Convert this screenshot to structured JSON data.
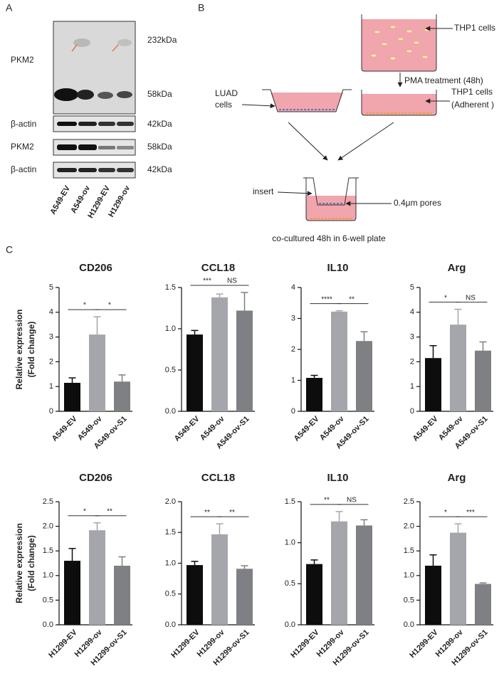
{
  "panels": {
    "A": {
      "label": "A",
      "blots": [
        {
          "protein": "PKM2",
          "markers": [
            "232kDa",
            "58kDa"
          ]
        },
        {
          "protein": "β-actin",
          "markers": [
            "42kDa"
          ]
        },
        {
          "protein": "PKM2",
          "markers": [
            "58kDa"
          ]
        },
        {
          "protein": "β-actin",
          "markers": [
            "42kDa"
          ]
        }
      ],
      "lanes": [
        "A549-EV",
        "A549-ov",
        "H1299-EV",
        "H1299-ov"
      ]
    },
    "B": {
      "label": "B",
      "thp1": "THP1 cells",
      "pma": "PMA treatment (48h)",
      "luad": [
        "LUAD",
        "cells"
      ],
      "adherent": [
        "THP1 cells",
        "(Adherent )"
      ],
      "insert": "insert",
      "pores": "0.4μm pores",
      "caption": "co-cultured 48h in 6-well plate"
    },
    "C": {
      "label": "C"
    }
  },
  "chart_data": [
    {
      "type": "bar",
      "title": "CD206",
      "ylabel": [
        "Relative expression",
        "(Fold change)"
      ],
      "categories": [
        "A549-EV",
        "A549-ov",
        "A549-ov-S1"
      ],
      "values": [
        1.15,
        3.1,
        1.2
      ],
      "errors": [
        0.2,
        0.72,
        0.27
      ],
      "colors": [
        "#0d0d0d",
        "#a5a6ab",
        "#7f8083"
      ],
      "ylim": [
        0,
        5
      ],
      "yticks": [
        0,
        1,
        2,
        3,
        4,
        5
      ],
      "significance": [
        "*",
        "*"
      ]
    },
    {
      "type": "bar",
      "title": "CCL18",
      "categories": [
        "A549-EV",
        "A549-ov",
        "A549-ov-S1"
      ],
      "values": [
        0.93,
        1.38,
        1.22
      ],
      "errors": [
        0.05,
        0.04,
        0.22
      ],
      "colors": [
        "#0d0d0d",
        "#a5a6ab",
        "#7f8083"
      ],
      "ylim": [
        0,
        1.5
      ],
      "yticks": [
        {
          "value": 0,
          "label": "0.0"
        },
        0.5,
        {
          "value": 1,
          "label": "1.0"
        },
        1.5
      ],
      "significance": [
        "***",
        "NS"
      ]
    },
    {
      "type": "bar",
      "title": "IL10",
      "categories": [
        "A549-EV",
        "A549-ov",
        "A549-ov-S1"
      ],
      "values": [
        1.08,
        3.22,
        2.27
      ],
      "errors": [
        0.08,
        0.03,
        0.3
      ],
      "colors": [
        "#0d0d0d",
        "#a5a6ab",
        "#7f8083"
      ],
      "ylim": [
        0,
        4
      ],
      "yticks": [
        0,
        1,
        2,
        3,
        4
      ],
      "significance": [
        "****",
        "**"
      ]
    },
    {
      "type": "bar",
      "title": "Arg",
      "categories": [
        "A549-EV",
        "A549-ov",
        "A549-ov-S1"
      ],
      "values": [
        2.15,
        3.5,
        2.45
      ],
      "errors": [
        0.5,
        0.62,
        0.35
      ],
      "colors": [
        "#0d0d0d",
        "#a5a6ab",
        "#7f8083"
      ],
      "ylim": [
        0,
        5
      ],
      "yticks": [
        0,
        1,
        2,
        3,
        4,
        5
      ],
      "significance": [
        "*",
        "NS"
      ]
    },
    {
      "type": "bar",
      "title": "CD206",
      "ylabel": [
        "Relative expression",
        "(Fold change)"
      ],
      "categories": [
        "H1299-EV",
        "H1299-ov",
        "H1299-ov-S1"
      ],
      "values": [
        1.3,
        1.92,
        1.2
      ],
      "errors": [
        0.25,
        0.15,
        0.18
      ],
      "colors": [
        "#0d0d0d",
        "#a5a6ab",
        "#7f8083"
      ],
      "ylim": [
        0,
        2.5
      ],
      "yticks": [
        {
          "value": 0,
          "label": "0.0"
        },
        0.5,
        {
          "value": 1,
          "label": "1.0"
        },
        1.5,
        {
          "value": 2,
          "label": "2.0"
        },
        2.5
      ],
      "significance": [
        "*",
        "**"
      ]
    },
    {
      "type": "bar",
      "title": "CCL18",
      "categories": [
        "H1299-EV",
        "H1299-ov",
        "H1299-ov-S1"
      ],
      "values": [
        0.97,
        1.47,
        0.91
      ],
      "errors": [
        0.06,
        0.17,
        0.05
      ],
      "colors": [
        "#0d0d0d",
        "#a5a6ab",
        "#7f8083"
      ],
      "ylim": [
        0,
        2
      ],
      "yticks": [
        {
          "value": 0,
          "label": "0.0"
        },
        0.5,
        {
          "value": 1,
          "label": "1.0"
        },
        1.5,
        {
          "value": 2,
          "label": "2.0"
        }
      ],
      "significance": [
        "**",
        "**"
      ]
    },
    {
      "type": "bar",
      "title": "IL10",
      "categories": [
        "H1299-EV",
        "H1299-ov",
        "H1299-ov-S1"
      ],
      "values": [
        0.74,
        1.26,
        1.21
      ],
      "errors": [
        0.05,
        0.12,
        0.07
      ],
      "colors": [
        "#0d0d0d",
        "#a5a6ab",
        "#7f8083"
      ],
      "ylim": [
        0,
        1.5
      ],
      "yticks": [
        {
          "value": 0,
          "label": "0.0"
        },
        0.5,
        {
          "value": 1,
          "label": "1.0"
        },
        1.5
      ],
      "significance": [
        "**",
        "NS"
      ]
    },
    {
      "type": "bar",
      "title": "Arg",
      "categories": [
        "H1299-EV",
        "H1299-ov",
        "H1299-ov-S1"
      ],
      "values": [
        1.2,
        1.87,
        0.83
      ],
      "errors": [
        0.22,
        0.18,
        0.02
      ],
      "colors": [
        "#0d0d0d",
        "#a5a6ab",
        "#7f8083"
      ],
      "ylim": [
        0,
        2.5
      ],
      "yticks": [
        {
          "value": 0,
          "label": "0.0"
        },
        0.5,
        {
          "value": 1,
          "label": "1.0"
        },
        1.5,
        {
          "value": 2,
          "label": "2.0"
        },
        2.5
      ],
      "significance": [
        "*",
        "***"
      ]
    }
  ]
}
